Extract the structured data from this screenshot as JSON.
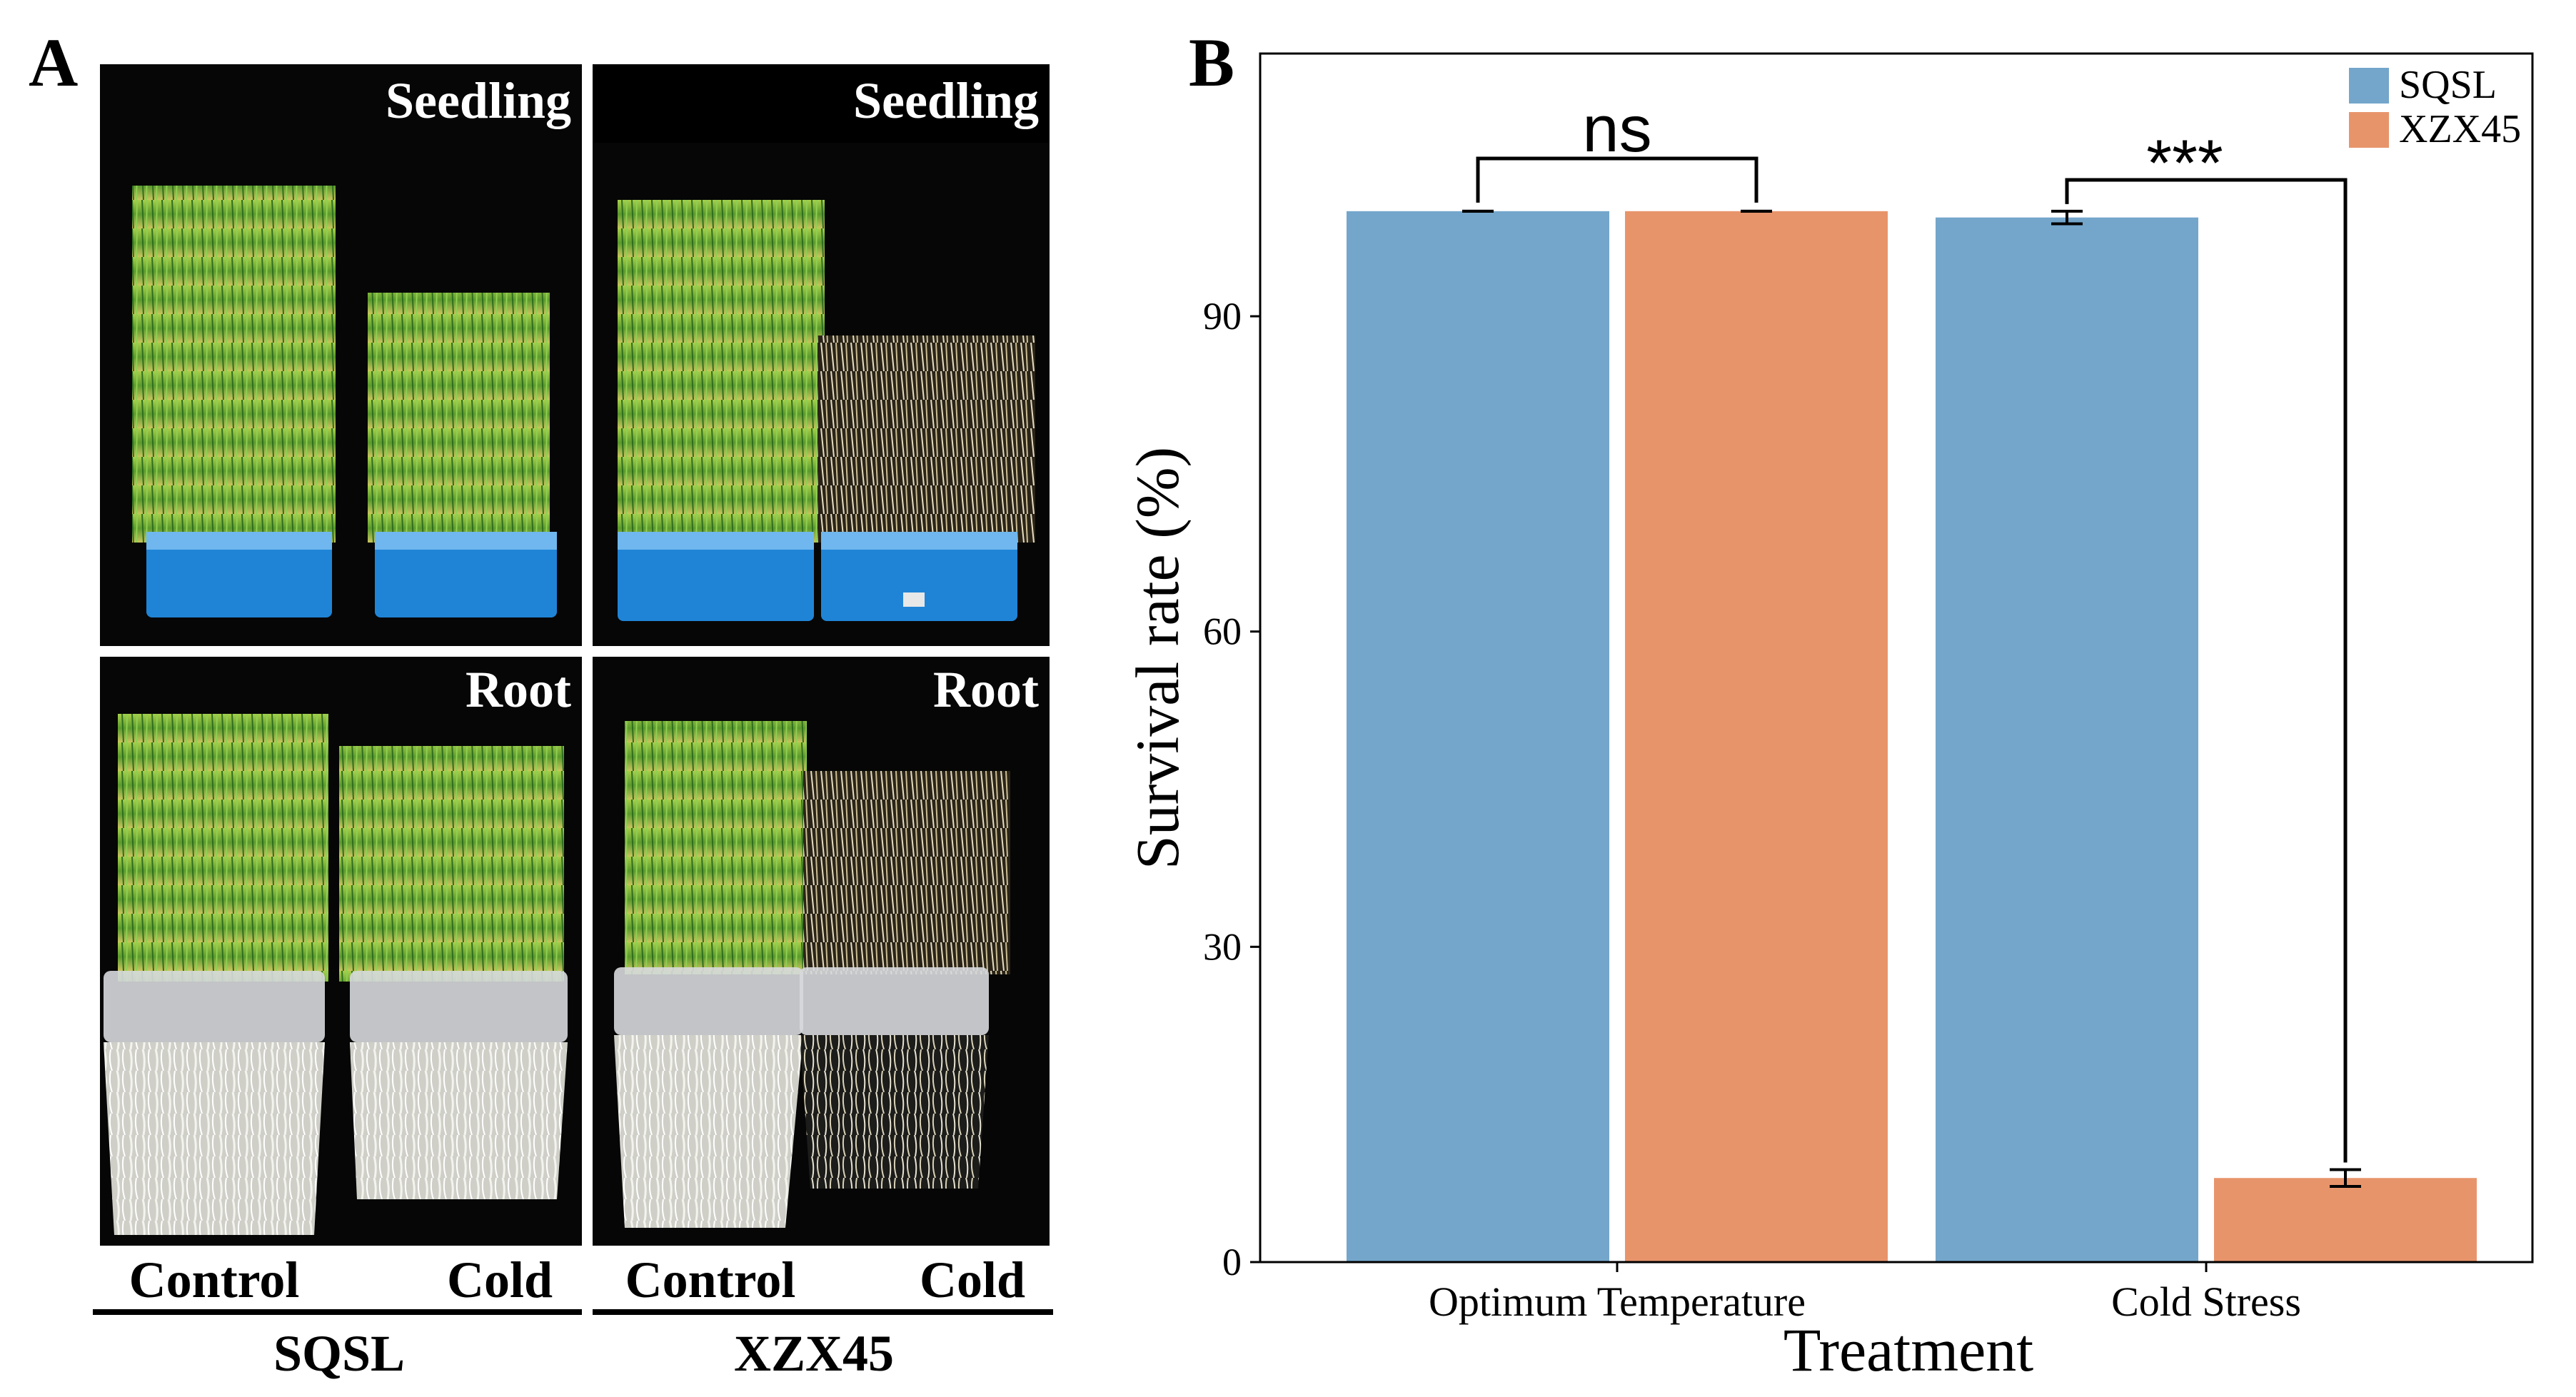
{
  "panel_a": {
    "letter": "A",
    "photos": [
      {
        "label": "Seedling"
      },
      {
        "label": "Seedling"
      },
      {
        "label": "Root"
      },
      {
        "label": "Root"
      }
    ],
    "conditions": [
      "Control",
      "Cold",
      "Control",
      "Cold"
    ],
    "varieties": [
      "SQSL",
      "XZX45"
    ]
  },
  "panel_b": {
    "letter": "B"
  },
  "colors": {
    "SQSL": "#74a6cb",
    "XZX45": "#e8946b"
  },
  "chart_data": {
    "type": "bar",
    "categories": [
      "Optimum Temperature",
      "Cold Stress"
    ],
    "series": [
      {
        "name": "SQSL",
        "values": [
          100,
          99.4
        ],
        "errors": [
          0,
          0.6
        ]
      },
      {
        "name": "XZX45",
        "values": [
          100,
          8.0
        ],
        "errors": [
          0,
          0.8
        ]
      }
    ],
    "xlabel": "Treatment",
    "ylabel": "Survival rate (%)",
    "ylim": [
      0,
      115
    ],
    "yticks": [
      0,
      30,
      60,
      90
    ],
    "ytick_labels": [
      "0",
      "30",
      "60",
      "90"
    ],
    "grid": false,
    "legend": "top-right",
    "significance": [
      {
        "category": "Optimum Temperature",
        "label": "ns"
      },
      {
        "category": "Cold Stress",
        "label": "***"
      }
    ]
  }
}
